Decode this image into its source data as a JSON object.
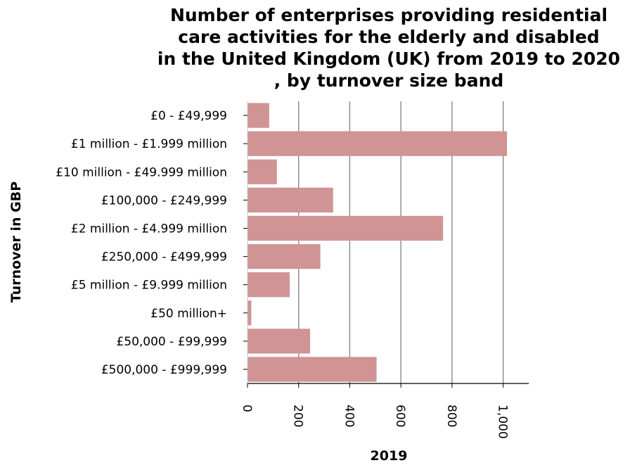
{
  "chart_data": {
    "type": "bar",
    "orientation": "horizontal",
    "title": "Number of enterprises providing residential care activities for the elderly and disabled in the United Kingdom (UK) from 2019 to 2020 , by turnover size band",
    "title_lines": [
      "Number of enterprises providing residential",
      "care activities for the elderly and disabled",
      "in the United Kingdom (UK) from 2019 to 2020",
      ", by turnover size band"
    ],
    "xlabel": "2019",
    "ylabel": "Turnover in GBP",
    "categories": [
      "£0 - £49,999",
      "£1 million - £1.999 million",
      "£10 million - £49.999 million",
      "£100,000 - £249,999",
      "£2 million - £4.999 million",
      "£250,000 - £499,999",
      "£5 million - £9.999 million",
      "£50 million+",
      "£50,000 - £99,999",
      "£500,000 - £999,999"
    ],
    "values": [
      85,
      1015,
      115,
      335,
      765,
      285,
      165,
      15,
      245,
      505
    ],
    "xlim": [
      0,
      1100
    ],
    "xticks": [
      0,
      200,
      400,
      600,
      800,
      1000
    ],
    "xtick_labels": [
      "0",
      "200",
      "400",
      "600",
      "800",
      "1,000"
    ],
    "grid": "vertical",
    "bar_color": "#d09494",
    "grid_color": "#7f7f7f"
  }
}
